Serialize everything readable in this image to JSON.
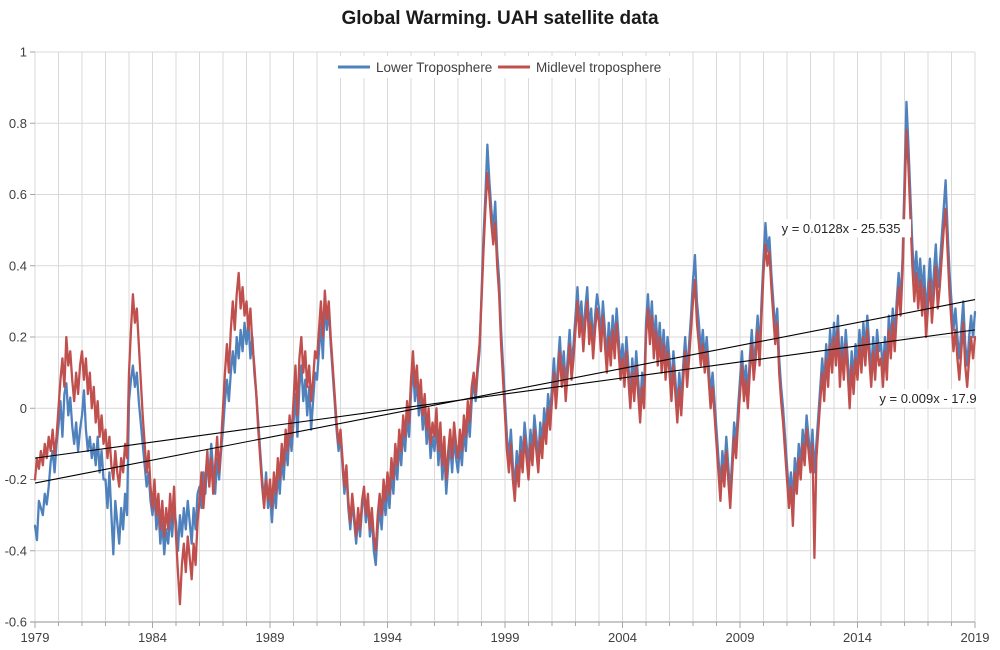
{
  "title": "Global Warming. UAH satellite data",
  "colors": {
    "background": "#FFFFFF",
    "gridline": "#D9D9D9",
    "axis": "#A6A6A6",
    "tick_text": "#404040",
    "title_text": "#1A1A1A",
    "annotation_text": "#262626",
    "trendline": "#000000",
    "series_lower": "#4F81BD",
    "series_midlevel": "#C0504D"
  },
  "chart_data": {
    "type": "line",
    "title": "Global Warming. UAH satellite data",
    "xlabel": "",
    "ylabel": "",
    "xlim": [
      1979,
      2019
    ],
    "ylim": [
      -0.6,
      1
    ],
    "grid": true,
    "legend_position": "top-center",
    "x_tick_years": [
      1979,
      1984,
      1989,
      1994,
      1999,
      2004,
      2009,
      2014,
      2019
    ],
    "x_minor_grid_step_years": 1,
    "y_ticks": [
      1,
      0.8,
      0.6,
      0.4,
      0.2,
      0,
      -0.2,
      -0.4,
      -0.6
    ],
    "x_start_year": 1979,
    "points_per_year": 12,
    "series": [
      {
        "name": "Lower Troposphere",
        "color": "#4F81BD",
        "values": [
          -0.33,
          -0.37,
          -0.26,
          -0.28,
          -0.3,
          -0.24,
          -0.27,
          -0.22,
          -0.15,
          -0.12,
          -0.18,
          -0.1,
          -0.05,
          0.02,
          -0.08,
          0.04,
          0.07,
          -0.02,
          0.03,
          -0.05,
          -0.1,
          -0.04,
          -0.12,
          -0.06,
          -0.02,
          0.05,
          -0.06,
          -0.12,
          -0.08,
          -0.14,
          -0.1,
          -0.16,
          -0.08,
          -0.18,
          -0.12,
          -0.2,
          -0.2,
          -0.28,
          -0.18,
          -0.3,
          -0.41,
          -0.26,
          -0.32,
          -0.38,
          -0.28,
          -0.34,
          -0.24,
          -0.3,
          0.02,
          0.08,
          0.12,
          0.06,
          0.1,
          0.02,
          -0.04,
          -0.1,
          -0.16,
          -0.22,
          -0.18,
          -0.26,
          -0.3,
          -0.24,
          -0.34,
          -0.28,
          -0.38,
          -0.32,
          -0.41,
          -0.34,
          -0.38,
          -0.3,
          -0.36,
          -0.28,
          -0.32,
          -0.4,
          -0.3,
          -0.36,
          -0.28,
          -0.34,
          -0.26,
          -0.32,
          -0.38,
          -0.28,
          -0.34,
          -0.24,
          -0.22,
          -0.28,
          -0.18,
          -0.24,
          -0.14,
          -0.2,
          -0.1,
          -0.18,
          -0.24,
          -0.14,
          -0.2,
          -0.12,
          -0.06,
          0.02,
          0.08,
          0.02,
          0.1,
          0.16,
          0.1,
          0.2,
          0.14,
          0.22,
          0.16,
          0.24,
          0.18,
          0.24,
          0.14,
          0.2,
          0.1,
          0.04,
          -0.04,
          -0.12,
          -0.2,
          -0.26,
          -0.18,
          -0.28,
          -0.24,
          -0.32,
          -0.22,
          -0.28,
          -0.18,
          -0.24,
          -0.14,
          -0.2,
          -0.1,
          -0.16,
          -0.06,
          -0.12,
          -0.04,
          0.04,
          -0.08,
          0.06,
          0.12,
          0.02,
          0.08,
          -0.02,
          0.06,
          -0.06,
          0.02,
          0.1,
          0.08,
          0.16,
          0.24,
          0.14,
          0.3,
          0.22,
          0.28,
          0.18,
          0.1,
          0.02,
          -0.06,
          -0.12,
          -0.08,
          -0.16,
          -0.24,
          -0.18,
          -0.28,
          -0.34,
          -0.26,
          -0.32,
          -0.38,
          -0.3,
          -0.36,
          -0.28,
          -0.24,
          -0.32,
          -0.26,
          -0.36,
          -0.3,
          -0.4,
          -0.44,
          -0.34,
          -0.28,
          -0.34,
          -0.24,
          -0.3,
          -0.22,
          -0.28,
          -0.18,
          -0.24,
          -0.14,
          -0.2,
          -0.1,
          -0.16,
          -0.06,
          -0.12,
          -0.02,
          -0.08,
          0.04,
          0.12,
          0.02,
          0.08,
          -0.02,
          0.04,
          -0.06,
          0.0,
          -0.1,
          -0.04,
          -0.14,
          -0.08,
          -0.12,
          -0.04,
          -0.16,
          -0.08,
          -0.2,
          -0.12,
          -0.24,
          -0.16,
          -0.1,
          -0.18,
          -0.08,
          -0.14,
          -0.18,
          -0.1,
          -0.16,
          -0.06,
          -0.12,
          -0.02,
          -0.08,
          0.02,
          0.08,
          0.02,
          0.1,
          0.16,
          0.32,
          0.48,
          0.6,
          0.74,
          0.64,
          0.56,
          0.5,
          0.58,
          0.44,
          0.36,
          0.22,
          0.12,
          0.02,
          -0.08,
          -0.14,
          -0.06,
          -0.16,
          -0.22,
          -0.12,
          -0.18,
          -0.08,
          -0.14,
          -0.04,
          -0.1,
          -0.16,
          -0.06,
          -0.12,
          -0.02,
          -0.08,
          -0.14,
          -0.04,
          -0.1,
          0.0,
          -0.06,
          0.04,
          -0.02,
          0.06,
          0.14,
          0.04,
          0.12,
          0.2,
          0.1,
          0.16,
          0.06,
          0.14,
          0.22,
          0.12,
          0.18,
          0.26,
          0.34,
          0.24,
          0.3,
          0.2,
          0.28,
          0.34,
          0.22,
          0.28,
          0.18,
          0.26,
          0.32,
          0.28,
          0.2,
          0.3,
          0.22,
          0.14,
          0.24,
          0.16,
          0.26,
          0.18,
          0.28,
          0.2,
          0.12,
          0.18,
          0.1,
          0.2,
          0.12,
          0.04,
          0.14,
          0.06,
          0.16,
          0.08,
          0.0,
          0.1,
          0.04,
          0.24,
          0.32,
          0.22,
          0.3,
          0.18,
          0.26,
          0.16,
          0.24,
          0.14,
          0.22,
          0.12,
          0.2,
          0.14,
          0.06,
          0.16,
          0.08,
          0.0,
          0.1,
          0.02,
          0.12,
          0.2,
          0.1,
          0.18,
          0.26,
          0.36,
          0.43,
          0.3,
          0.24,
          0.16,
          0.22,
          0.14,
          0.2,
          0.12,
          0.04,
          0.1,
          0.02,
          -0.06,
          -0.14,
          -0.22,
          -0.12,
          -0.18,
          -0.08,
          -0.16,
          -0.24,
          -0.14,
          -0.04,
          -0.1,
          0.0,
          0.08,
          0.16,
          0.06,
          0.12,
          0.04,
          0.14,
          0.22,
          0.12,
          0.18,
          0.26,
          0.16,
          0.3,
          0.42,
          0.52,
          0.44,
          0.48,
          0.38,
          0.3,
          0.22,
          0.28,
          0.14,
          0.06,
          0.0,
          -0.08,
          -0.16,
          -0.24,
          -0.18,
          -0.26,
          -0.14,
          -0.2,
          -0.1,
          -0.16,
          -0.06,
          -0.12,
          -0.02,
          -0.08,
          -0.14,
          -0.06,
          -0.18,
          -0.1,
          -0.02,
          0.06,
          0.14,
          0.06,
          0.18,
          0.1,
          0.22,
          0.14,
          0.24,
          0.16,
          0.26,
          0.1,
          0.2,
          0.12,
          0.22,
          0.14,
          0.04,
          0.16,
          0.08,
          0.18,
          0.12,
          0.22,
          0.14,
          0.24,
          0.16,
          0.26,
          0.18,
          0.1,
          0.2,
          0.12,
          0.22,
          0.16,
          0.18,
          0.1,
          0.2,
          0.12,
          0.26,
          0.18,
          0.28,
          0.2,
          0.3,
          0.38,
          0.3,
          0.42,
          0.64,
          0.86,
          0.74,
          0.6,
          0.46,
          0.36,
          0.44,
          0.34,
          0.42,
          0.32,
          0.4,
          0.26,
          0.34,
          0.42,
          0.3,
          0.38,
          0.46,
          0.34,
          0.4,
          0.48,
          0.56,
          0.64,
          0.5,
          0.38,
          0.3,
          0.22,
          0.28,
          0.2,
          0.14,
          0.22,
          0.3,
          0.18,
          0.12,
          0.2,
          0.26,
          0.2,
          0.27
        ]
      },
      {
        "name": "Midlevel troposphere",
        "color": "#C0504D",
        "values": [
          -0.2,
          -0.14,
          -0.17,
          -0.12,
          -0.16,
          -0.1,
          -0.14,
          -0.08,
          -0.12,
          -0.06,
          -0.13,
          -0.08,
          0.0,
          0.08,
          0.14,
          0.06,
          0.2,
          0.12,
          0.16,
          0.08,
          0.02,
          0.1,
          0.04,
          0.12,
          0.16,
          0.08,
          0.14,
          0.04,
          0.1,
          0.0,
          0.06,
          -0.04,
          0.02,
          -0.08,
          -0.02,
          -0.1,
          -0.06,
          -0.14,
          -0.08,
          -0.16,
          -0.2,
          -0.12,
          -0.18,
          -0.22,
          -0.14,
          -0.18,
          -0.1,
          -0.14,
          0.1,
          0.22,
          0.32,
          0.24,
          0.28,
          0.18,
          0.08,
          -0.02,
          -0.1,
          -0.18,
          -0.12,
          -0.22,
          -0.28,
          -0.2,
          -0.3,
          -0.24,
          -0.34,
          -0.26,
          -0.36,
          -0.28,
          -0.34,
          -0.24,
          -0.32,
          -0.22,
          -0.36,
          -0.46,
          -0.55,
          -0.44,
          -0.38,
          -0.46,
          -0.36,
          -0.42,
          -0.48,
          -0.38,
          -0.44,
          -0.32,
          -0.26,
          -0.18,
          -0.28,
          -0.2,
          -0.12,
          -0.22,
          -0.14,
          -0.24,
          -0.16,
          -0.08,
          -0.18,
          -0.1,
          0.0,
          0.1,
          0.18,
          0.1,
          0.22,
          0.3,
          0.22,
          0.32,
          0.38,
          0.28,
          0.34,
          0.26,
          0.3,
          0.22,
          0.28,
          0.18,
          0.12,
          0.04,
          -0.06,
          -0.14,
          -0.22,
          -0.28,
          -0.2,
          -0.26,
          -0.2,
          -0.28,
          -0.18,
          -0.24,
          -0.14,
          -0.2,
          -0.1,
          -0.16,
          -0.06,
          -0.12,
          -0.02,
          -0.08,
          0.02,
          0.12,
          -0.02,
          0.14,
          0.2,
          0.1,
          0.16,
          0.06,
          0.12,
          0.02,
          0.08,
          0.16,
          0.14,
          0.22,
          0.3,
          0.2,
          0.33,
          0.25,
          0.3,
          0.2,
          0.12,
          0.04,
          -0.04,
          -0.1,
          -0.06,
          -0.14,
          -0.22,
          -0.16,
          -0.26,
          -0.32,
          -0.24,
          -0.3,
          -0.36,
          -0.28,
          -0.34,
          -0.26,
          -0.22,
          -0.3,
          -0.24,
          -0.34,
          -0.28,
          -0.36,
          -0.4,
          -0.3,
          -0.24,
          -0.3,
          -0.2,
          -0.26,
          -0.18,
          -0.24,
          -0.14,
          -0.2,
          -0.1,
          -0.16,
          -0.06,
          -0.12,
          -0.02,
          -0.08,
          0.02,
          -0.04,
          0.08,
          0.16,
          0.06,
          0.12,
          0.02,
          0.08,
          -0.02,
          0.04,
          -0.06,
          0.0,
          -0.1,
          -0.04,
          -0.08,
          0.0,
          -0.12,
          -0.04,
          -0.16,
          -0.08,
          -0.2,
          -0.12,
          -0.06,
          -0.14,
          -0.04,
          -0.1,
          -0.14,
          -0.06,
          -0.12,
          -0.02,
          -0.08,
          0.02,
          -0.04,
          0.06,
          0.1,
          0.04,
          0.12,
          0.18,
          0.3,
          0.44,
          0.56,
          0.66,
          0.6,
          0.52,
          0.46,
          0.52,
          0.4,
          0.32,
          0.18,
          0.08,
          -0.02,
          -0.12,
          -0.18,
          -0.1,
          -0.2,
          -0.26,
          -0.16,
          -0.22,
          -0.12,
          -0.18,
          -0.08,
          -0.14,
          -0.2,
          -0.1,
          -0.16,
          -0.06,
          -0.12,
          -0.18,
          -0.08,
          -0.14,
          -0.04,
          -0.1,
          0.0,
          -0.06,
          0.02,
          0.1,
          0.0,
          0.08,
          0.16,
          0.06,
          0.12,
          0.02,
          0.1,
          0.18,
          0.08,
          0.14,
          0.22,
          0.3,
          0.2,
          0.26,
          0.16,
          0.24,
          0.3,
          0.18,
          0.24,
          0.14,
          0.22,
          0.28,
          0.24,
          0.16,
          0.26,
          0.18,
          0.1,
          0.2,
          0.12,
          0.22,
          0.14,
          0.24,
          0.16,
          0.08,
          0.14,
          0.06,
          0.16,
          0.08,
          0.0,
          0.1,
          0.02,
          0.12,
          0.04,
          -0.04,
          0.06,
          0.0,
          0.2,
          0.28,
          0.18,
          0.26,
          0.14,
          0.22,
          0.12,
          0.2,
          0.1,
          0.18,
          0.08,
          0.16,
          0.1,
          0.02,
          0.12,
          0.04,
          -0.04,
          0.06,
          -0.02,
          0.08,
          0.16,
          0.06,
          0.14,
          0.22,
          0.3,
          0.36,
          0.24,
          0.18,
          0.12,
          0.18,
          0.1,
          0.16,
          0.08,
          0.0,
          0.06,
          -0.02,
          -0.1,
          -0.18,
          -0.26,
          -0.16,
          -0.22,
          -0.12,
          -0.2,
          -0.28,
          -0.18,
          -0.08,
          -0.14,
          -0.04,
          0.04,
          0.12,
          0.02,
          0.08,
          0.0,
          0.1,
          0.18,
          0.08,
          0.14,
          0.22,
          0.12,
          0.26,
          0.38,
          0.46,
          0.4,
          0.44,
          0.34,
          0.26,
          0.18,
          0.24,
          0.1,
          0.02,
          -0.04,
          -0.12,
          -0.2,
          -0.28,
          -0.22,
          -0.33,
          -0.18,
          -0.24,
          -0.14,
          -0.2,
          -0.1,
          -0.16,
          -0.06,
          -0.12,
          -0.18,
          -0.1,
          -0.42,
          -0.14,
          -0.06,
          0.02,
          0.1,
          0.02,
          0.14,
          0.06,
          0.18,
          0.1,
          0.2,
          0.12,
          0.22,
          0.06,
          0.16,
          0.08,
          0.18,
          0.1,
          0.0,
          0.12,
          0.04,
          0.14,
          0.08,
          0.18,
          0.1,
          0.2,
          0.12,
          0.22,
          0.14,
          0.06,
          0.16,
          0.08,
          0.18,
          0.12,
          0.14,
          0.06,
          0.16,
          0.08,
          0.22,
          0.14,
          0.24,
          0.16,
          0.26,
          0.34,
          0.26,
          0.38,
          0.58,
          0.78,
          0.68,
          0.54,
          0.4,
          0.3,
          0.38,
          0.28,
          0.36,
          0.26,
          0.34,
          0.2,
          0.28,
          0.36,
          0.24,
          0.32,
          0.4,
          0.28,
          0.34,
          0.42,
          0.5,
          0.56,
          0.44,
          0.32,
          0.24,
          0.16,
          0.22,
          0.14,
          0.08,
          0.16,
          0.24,
          0.12,
          0.06,
          0.14,
          0.2,
          0.14,
          0.2
        ]
      }
    ],
    "trendlines": [
      {
        "series": "Lower Troposphere",
        "equation_label": "y = 0.0128x - 25.535",
        "color": "#000000",
        "x1": 1979,
        "y1": -0.21,
        "x2": 2019,
        "y2": 0.305,
        "label_x": 2013.3,
        "label_y": 0.505
      },
      {
        "series": "Midlevel troposphere",
        "equation_label": "y = 0.009x - 17.9",
        "color": "#000000",
        "x1": 1979,
        "y1": -0.14,
        "x2": 2019,
        "y2": 0.22,
        "label_x": 2017.0,
        "label_y": 0.028
      }
    ]
  }
}
